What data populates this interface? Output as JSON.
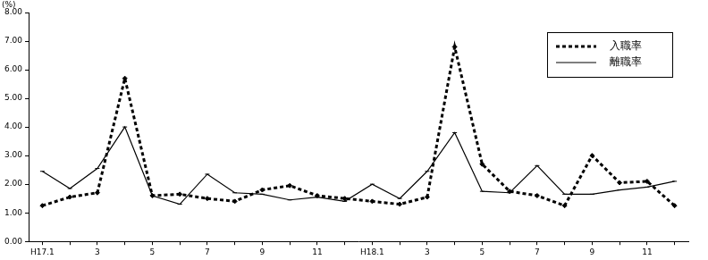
{
  "chart_data": {
    "type": "line",
    "y_label": "(%)",
    "categories": [
      "H17.1",
      null,
      "3",
      null,
      "5",
      null,
      "7",
      null,
      "9",
      null,
      "11",
      null,
      "H18.1",
      null,
      "3",
      null,
      "5",
      null,
      "7",
      null,
      "9",
      null,
      "11",
      null
    ],
    "series": [
      {
        "name": "入職率",
        "color": "#000000",
        "line_style": "dotted",
        "marker": "rectRot",
        "values": [
          1.25,
          1.55,
          1.7,
          5.7,
          1.6,
          1.65,
          1.5,
          1.4,
          1.8,
          1.95,
          1.6,
          1.5,
          1.4,
          1.3,
          1.55,
          6.8,
          2.7,
          1.75,
          1.6,
          1.25,
          3.0,
          2.05,
          2.1,
          1.25
        ]
      },
      {
        "name": "離職率",
        "color": "#000000",
        "line_style": "solid",
        "marker": "line",
        "values": [
          2.45,
          1.85,
          2.55,
          4.0,
          1.6,
          1.3,
          2.35,
          1.7,
          1.65,
          1.45,
          1.55,
          1.4,
          2.0,
          1.5,
          2.45,
          3.8,
          1.75,
          1.7,
          2.65,
          1.65,
          1.65,
          1.8,
          1.9,
          2.1
        ]
      }
    ],
    "ylim": [
      0,
      8
    ],
    "yticks": [
      {
        "value": 0,
        "label": "0.00"
      },
      {
        "value": 1,
        "label": "1.00"
      },
      {
        "value": 2,
        "label": "2.00"
      },
      {
        "value": 3,
        "label": "3.00"
      },
      {
        "value": 4,
        "label": "4.00"
      },
      {
        "value": 5,
        "label": "5.00"
      },
      {
        "value": 6,
        "label": "6.00"
      },
      {
        "value": 7,
        "label": "7.00"
      },
      {
        "value": 8,
        "label": "8.00"
      }
    ],
    "grid": false,
    "legend": "upper right"
  }
}
